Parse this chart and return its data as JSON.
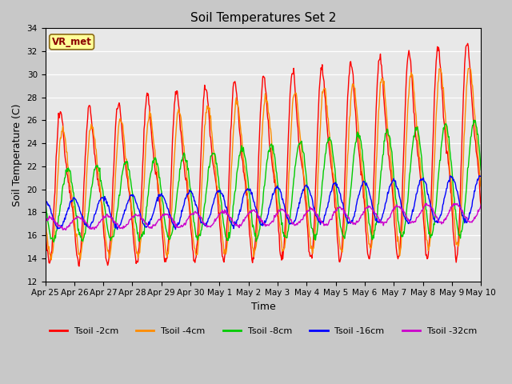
{
  "title": "Soil Temperatures Set 2",
  "xlabel": "Time",
  "ylabel": "Soil Temperature (C)",
  "ylim": [
    12,
    34
  ],
  "yticks": [
    12,
    14,
    16,
    18,
    20,
    22,
    24,
    26,
    28,
    30,
    32,
    34
  ],
  "annotation_text": "VR_met",
  "colors": {
    "Tsoil -2cm": "#FF0000",
    "Tsoil -4cm": "#FF8C00",
    "Tsoil -8cm": "#00CC00",
    "Tsoil -16cm": "#0000FF",
    "Tsoil -32cm": "#CC00CC"
  },
  "fig_bg": "#C8C8C8",
  "plot_bg": "#E8E8E8",
  "n_days": 15,
  "tick_labels": [
    "Apr 25",
    "Apr 26",
    "Apr 27",
    "Apr 28",
    "Apr 29",
    "Apr 30",
    "May 1",
    "May 2",
    "May 3",
    "May 4",
    "May 5",
    "May 6",
    "May 7",
    "May 8",
    "May 9",
    "May 10"
  ]
}
